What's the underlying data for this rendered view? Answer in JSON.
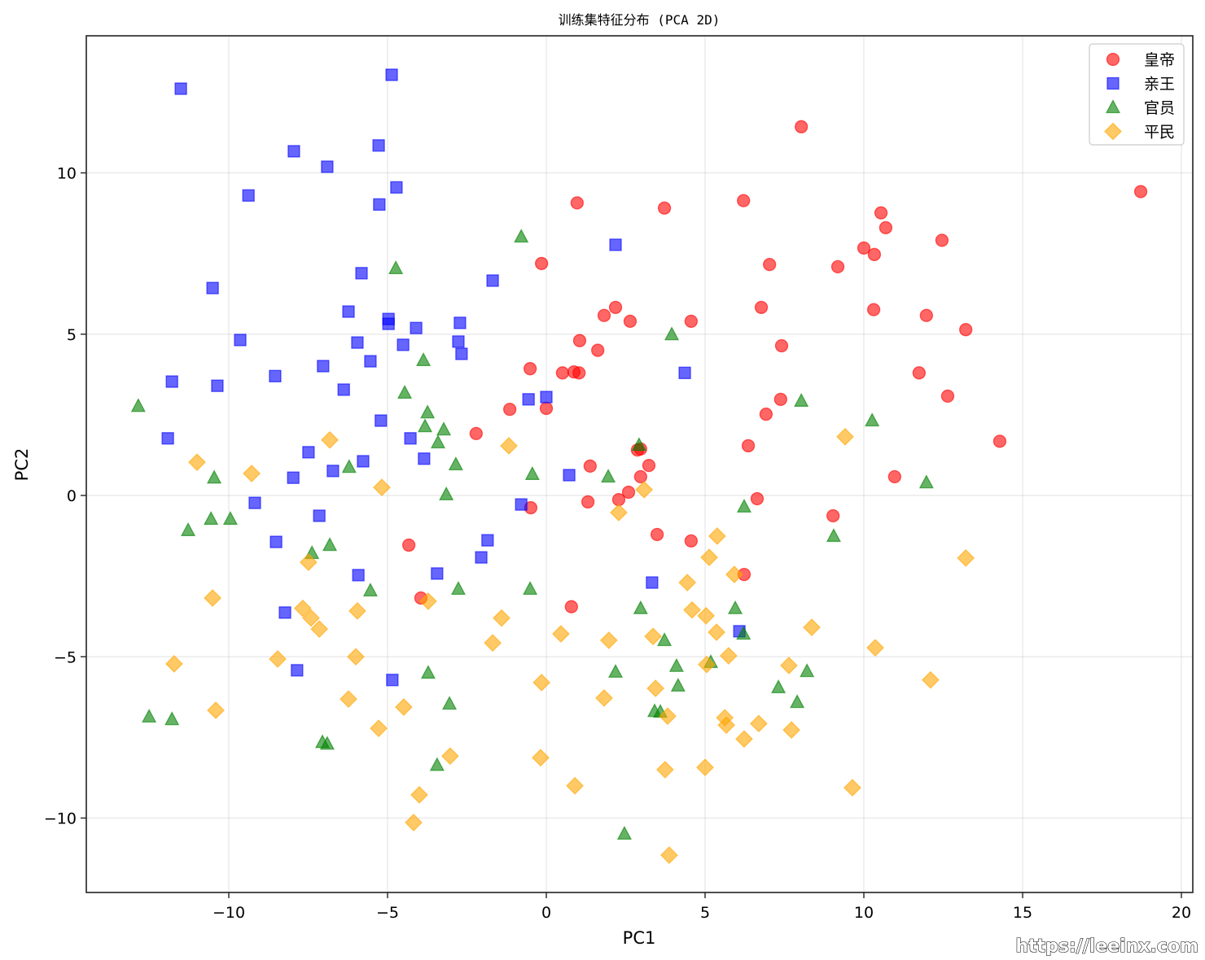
{
  "chart_data": {
    "type": "scatter",
    "title": "训练集特征分布 (PCA 2D)",
    "xlabel": "PC1",
    "ylabel": "PC2",
    "xlim": [
      -14.4,
      20.4
    ],
    "ylim": [
      -12.3,
      14.2
    ],
    "xticks": [
      -10,
      -5,
      0,
      5,
      10,
      15,
      20
    ],
    "yticks": [
      -10,
      -5,
      0,
      5,
      10
    ],
    "xtick_labels": [
      "−10",
      "−5",
      "0",
      "5",
      "10",
      "15",
      "20"
    ],
    "ytick_labels": [
      "−10",
      "−5",
      "0",
      "5",
      "10"
    ],
    "grid": true,
    "legend_position": "upper right",
    "watermark": "https://leeinx.com",
    "series": [
      {
        "name": "皇帝",
        "marker": "circle",
        "color": "#ff0000",
        "points": [
          [
            0.97,
            9.07
          ],
          [
            3.72,
            8.91
          ],
          [
            6.21,
            9.14
          ],
          [
            8.03,
            11.43
          ],
          [
            18.72,
            9.42
          ],
          [
            -0.15,
            7.19
          ],
          [
            1.05,
            4.8
          ],
          [
            1.62,
            4.5
          ],
          [
            1.82,
            5.58
          ],
          [
            2.18,
            5.83
          ],
          [
            2.64,
            5.4
          ],
          [
            4.56,
            5.4
          ],
          [
            6.77,
            5.83
          ],
          [
            7.03,
            7.16
          ],
          [
            7.41,
            4.64
          ],
          [
            7.38,
            2.98
          ],
          [
            6.92,
            2.52
          ],
          [
            6.36,
            1.54
          ],
          [
            9.18,
            7.09
          ],
          [
            10.0,
            7.67
          ],
          [
            10.33,
            7.47
          ],
          [
            10.54,
            8.76
          ],
          [
            10.69,
            8.3
          ],
          [
            10.31,
            5.76
          ],
          [
            12.46,
            7.91
          ],
          [
            11.97,
            5.58
          ],
          [
            13.21,
            5.14
          ],
          [
            11.74,
            3.8
          ],
          [
            12.64,
            3.08
          ],
          [
            14.28,
            1.68
          ],
          [
            10.97,
            0.58
          ],
          [
            -0.51,
            3.93
          ],
          [
            0.51,
            3.8
          ],
          [
            0.87,
            3.83
          ],
          [
            1.03,
            3.8
          ],
          [
            -1.15,
            2.67
          ],
          [
            0.0,
            2.7
          ],
          [
            -2.21,
            1.92
          ],
          [
            2.97,
            1.44
          ],
          [
            2.87,
            1.41
          ],
          [
            3.23,
            0.93
          ],
          [
            2.97,
            0.58
          ],
          [
            1.38,
            0.91
          ],
          [
            2.59,
            0.1
          ],
          [
            2.28,
            -0.13
          ],
          [
            1.31,
            -0.2
          ],
          [
            -0.49,
            -0.38
          ],
          [
            6.64,
            -0.1
          ],
          [
            9.03,
            -0.63
          ],
          [
            3.49,
            -1.21
          ],
          [
            4.56,
            -1.41
          ],
          [
            6.23,
            -2.45
          ],
          [
            -4.33,
            -1.54
          ],
          [
            -3.95,
            -3.18
          ],
          [
            0.79,
            -3.45
          ]
        ]
      },
      {
        "name": "亲王",
        "marker": "square",
        "color": "#0000ff",
        "points": [
          [
            -11.51,
            12.61
          ],
          [
            -4.87,
            13.04
          ],
          [
            -7.95,
            10.67
          ],
          [
            -6.9,
            10.19
          ],
          [
            -5.28,
            10.85
          ],
          [
            -9.38,
            9.3
          ],
          [
            -4.72,
            9.55
          ],
          [
            -5.26,
            9.02
          ],
          [
            2.18,
            7.77
          ],
          [
            -1.69,
            6.66
          ],
          [
            -10.51,
            6.43
          ],
          [
            -5.82,
            6.89
          ],
          [
            -6.23,
            5.7
          ],
          [
            -4.97,
            5.47
          ],
          [
            -4.97,
            5.32
          ],
          [
            -4.1,
            5.19
          ],
          [
            -2.72,
            5.35
          ],
          [
            -9.64,
            4.82
          ],
          [
            -5.95,
            4.74
          ],
          [
            -4.51,
            4.67
          ],
          [
            -2.77,
            4.77
          ],
          [
            -2.67,
            4.39
          ],
          [
            -11.79,
            3.53
          ],
          [
            -10.36,
            3.4
          ],
          [
            -8.54,
            3.7
          ],
          [
            -7.03,
            4.01
          ],
          [
            -5.54,
            4.16
          ],
          [
            -6.38,
            3.28
          ],
          [
            4.36,
            3.8
          ],
          [
            -0.56,
            2.98
          ],
          [
            0.0,
            3.05
          ],
          [
            -11.92,
            1.77
          ],
          [
            -5.21,
            2.32
          ],
          [
            -4.28,
            1.77
          ],
          [
            -7.49,
            1.34
          ],
          [
            -5.77,
            1.06
          ],
          [
            -6.72,
            0.76
          ],
          [
            -3.85,
            1.14
          ],
          [
            -7.97,
            0.55
          ],
          [
            -9.18,
            -0.23
          ],
          [
            -0.79,
            -0.28
          ],
          [
            0.72,
            0.63
          ],
          [
            -7.15,
            -0.63
          ],
          [
            -8.51,
            -1.44
          ],
          [
            -1.85,
            -1.39
          ],
          [
            -2.05,
            -1.92
          ],
          [
            -5.92,
            -2.47
          ],
          [
            -3.44,
            -2.42
          ],
          [
            3.33,
            -2.7
          ],
          [
            6.08,
            -4.21
          ],
          [
            -8.23,
            -3.63
          ],
          [
            -7.85,
            -5.42
          ],
          [
            -4.85,
            -5.72
          ]
        ]
      },
      {
        "name": "官员",
        "marker": "triangle",
        "color": "#008000",
        "points": [
          [
            -0.79,
            8.02
          ],
          [
            -4.74,
            7.04
          ],
          [
            3.95,
            4.99
          ],
          [
            -3.87,
            4.19
          ],
          [
            -4.46,
            3.18
          ],
          [
            -12.85,
            2.77
          ],
          [
            -3.74,
            2.57
          ],
          [
            -3.82,
            2.14
          ],
          [
            -3.23,
            2.04
          ],
          [
            -3.41,
            1.64
          ],
          [
            -2.85,
            0.96
          ],
          [
            2.92,
            1.56
          ],
          [
            8.03,
            2.93
          ],
          [
            10.26,
            2.32
          ],
          [
            -10.46,
            0.55
          ],
          [
            -6.21,
            0.88
          ],
          [
            -0.44,
            0.66
          ],
          [
            1.95,
            0.58
          ],
          [
            11.97,
            0.4
          ],
          [
            -3.15,
            0.03
          ],
          [
            6.23,
            -0.35
          ],
          [
            -10.56,
            -0.73
          ],
          [
            -9.95,
            -0.73
          ],
          [
            -11.28,
            -1.08
          ],
          [
            -7.38,
            -1.79
          ],
          [
            -6.82,
            -1.54
          ],
          [
            9.05,
            -1.26
          ],
          [
            -5.54,
            -2.95
          ],
          [
            -2.77,
            -2.9
          ],
          [
            -0.51,
            -2.9
          ],
          [
            2.97,
            -3.5
          ],
          [
            5.95,
            -3.5
          ],
          [
            6.21,
            -4.29
          ],
          [
            3.72,
            -4.49
          ],
          [
            5.18,
            -5.17
          ],
          [
            -3.72,
            -5.5
          ],
          [
            2.18,
            -5.47
          ],
          [
            4.1,
            -5.29
          ],
          [
            8.21,
            -5.45
          ],
          [
            4.15,
            -5.9
          ],
          [
            7.31,
            -5.95
          ],
          [
            -12.51,
            -6.86
          ],
          [
            -11.79,
            -6.94
          ],
          [
            -3.05,
            -6.46
          ],
          [
            7.9,
            -6.41
          ],
          [
            3.41,
            -6.69
          ],
          [
            3.59,
            -6.71
          ],
          [
            -7.05,
            -7.65
          ],
          [
            -6.9,
            -7.7
          ],
          [
            -3.44,
            -8.36
          ],
          [
            2.46,
            -10.49
          ]
        ]
      },
      {
        "name": "平民",
        "marker": "diamond",
        "color": "#ffa500",
        "points": [
          [
            -6.82,
            1.72
          ],
          [
            -11.0,
            1.03
          ],
          [
            -9.28,
            0.68
          ],
          [
            -5.18,
            0.25
          ],
          [
            -1.18,
            1.54
          ],
          [
            9.41,
            1.82
          ],
          [
            3.08,
            0.18
          ],
          [
            2.28,
            -0.53
          ],
          [
            5.38,
            -1.26
          ],
          [
            5.13,
            -1.92
          ],
          [
            13.21,
            -1.94
          ],
          [
            -7.49,
            -2.07
          ],
          [
            5.92,
            -2.45
          ],
          [
            4.44,
            -2.7
          ],
          [
            -10.51,
            -3.18
          ],
          [
            -3.72,
            -3.28
          ],
          [
            -7.67,
            -3.5
          ],
          [
            -7.41,
            -3.8
          ],
          [
            -7.15,
            -4.14
          ],
          [
            -5.95,
            -3.58
          ],
          [
            -1.41,
            -3.8
          ],
          [
            4.59,
            -3.55
          ],
          [
            5.03,
            -3.73
          ],
          [
            0.46,
            -4.29
          ],
          [
            5.36,
            -4.24
          ],
          [
            8.36,
            -4.09
          ],
          [
            3.36,
            -4.37
          ],
          [
            -1.69,
            -4.57
          ],
          [
            1.97,
            -4.49
          ],
          [
            10.36,
            -4.72
          ],
          [
            -11.72,
            -5.22
          ],
          [
            -8.46,
            -5.07
          ],
          [
            -6.0,
            -5.0
          ],
          [
            5.74,
            -4.97
          ],
          [
            5.05,
            -5.24
          ],
          [
            7.64,
            -5.27
          ],
          [
            -0.15,
            -5.8
          ],
          [
            3.44,
            -5.98
          ],
          [
            12.1,
            -5.72
          ],
          [
            -6.23,
            -6.31
          ],
          [
            -4.49,
            -6.56
          ],
          [
            1.82,
            -6.28
          ],
          [
            -10.41,
            -6.66
          ],
          [
            3.82,
            -6.84
          ],
          [
            5.62,
            -6.89
          ],
          [
            5.67,
            -7.12
          ],
          [
            6.69,
            -7.07
          ],
          [
            -5.28,
            -7.22
          ],
          [
            7.72,
            -7.27
          ],
          [
            6.23,
            -7.55
          ],
          [
            -3.03,
            -8.08
          ],
          [
            -0.18,
            -8.13
          ],
          [
            3.74,
            -8.5
          ],
          [
            5.0,
            -8.43
          ],
          [
            0.9,
            -9.0
          ],
          [
            9.64,
            -9.06
          ],
          [
            -4.0,
            -9.28
          ],
          [
            -4.18,
            -10.14
          ],
          [
            3.87,
            -11.15
          ]
        ]
      }
    ]
  }
}
